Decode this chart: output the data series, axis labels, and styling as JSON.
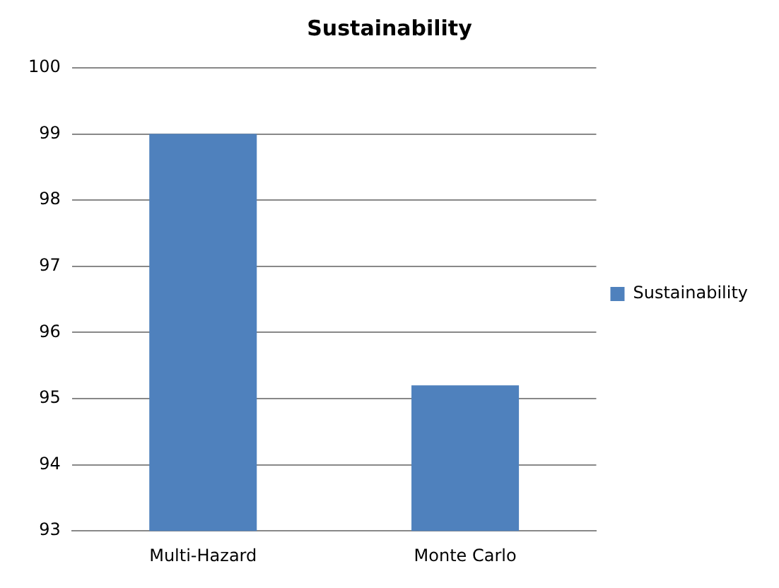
{
  "chart_data": {
    "type": "bar",
    "title": "Sustainability",
    "categories": [
      "Multi-Hazard",
      "Monte Carlo"
    ],
    "series": [
      {
        "name": "Sustainability",
        "color": "#4f81bd",
        "values": [
          99,
          95.2
        ]
      }
    ],
    "ylim": [
      93,
      100
    ],
    "yticks": [
      93,
      94,
      95,
      96,
      97,
      98,
      99,
      100
    ],
    "grid": "y",
    "legend": "right"
  }
}
